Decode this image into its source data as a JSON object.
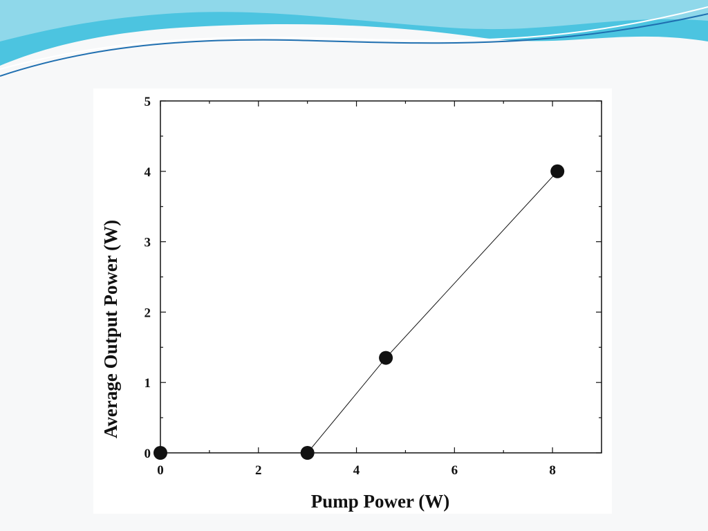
{
  "slide": {
    "background_color": "#f7f8f9",
    "accent_colors": [
      "#4cc4e0",
      "#8fd8ea",
      "#1f6fb0"
    ]
  },
  "chart_data": {
    "type": "line",
    "title": "",
    "xlabel": "Pump Power (W)",
    "ylabel": "Average Output Power (W)",
    "xlim": [
      0,
      9
    ],
    "ylim": [
      0,
      5
    ],
    "xticks": [
      0,
      2,
      4,
      6,
      8
    ],
    "yticks": [
      0,
      1,
      2,
      3,
      4,
      5
    ],
    "grid": false,
    "legend": "none",
    "marker": "filled-circle",
    "color": "#111111",
    "series": [
      {
        "x": [
          0,
          3.0,
          4.6,
          8.1
        ],
        "y": [
          0,
          0,
          1.35,
          4.0
        ]
      }
    ],
    "connected_segments": [
      [
        1,
        2
      ],
      [
        2,
        3
      ]
    ]
  }
}
